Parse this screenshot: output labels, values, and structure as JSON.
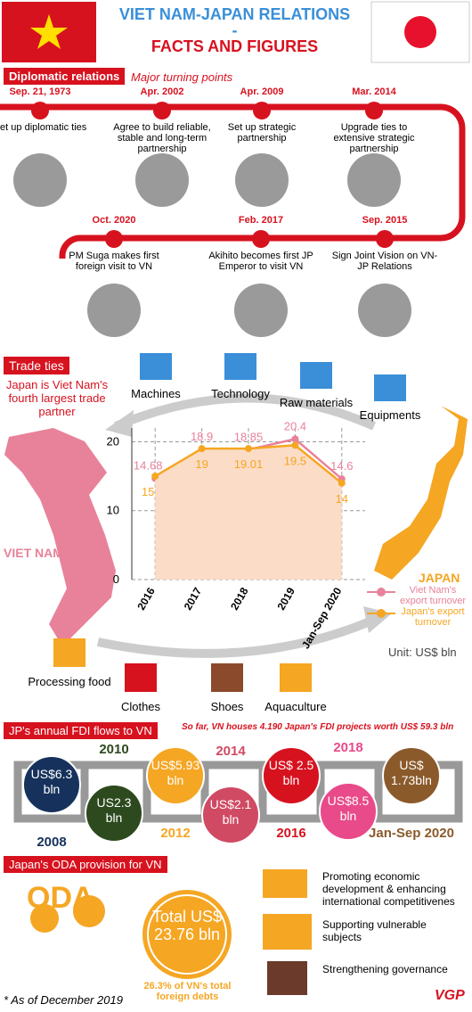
{
  "header": {
    "title_line1": "VIET NAM-JAPAN RELATIONS",
    "dash": "-",
    "title_line2": "FACTS AND FIGURES"
  },
  "diplomatic": {
    "label": "Diplomatic relations",
    "subtitle": "Major turning points",
    "events": [
      {
        "date": "Sep. 21, 1973",
        "text": "Set up diplomatic ties"
      },
      {
        "date": "Apr. 2002",
        "text": "Agree to build reliable, stable and long-term partnership"
      },
      {
        "date": "Apr. 2009",
        "text": "Set up strategic partnership"
      },
      {
        "date": "Mar. 2014",
        "text": "Upgrade ties to extensive strategic partnership"
      },
      {
        "date": "Sep. 2015",
        "text": "Sign Joint Vision on VN-JP Relations"
      },
      {
        "date": "Feb. 2017",
        "text": "Akihito becomes first JP Emperor to visit VN"
      },
      {
        "date": "Oct. 2020",
        "text": "PM Suga makes first foreign visit to VN"
      }
    ]
  },
  "trade": {
    "label": "Trade ties",
    "note": "Japan is Viet Nam's fourth largest trade partner",
    "imports": [
      "Machines",
      "Technology",
      "Raw materials",
      "Equipments"
    ],
    "exports": [
      "Processing food",
      "Clothes",
      "Shoes",
      "Aquaculture"
    ],
    "country_vn": "VIET NAM",
    "country_jp": "JAPAN",
    "unit": "Unit: US$ bln"
  },
  "chart_data": {
    "type": "line",
    "categories": [
      "2016",
      "2017",
      "2018",
      "2019",
      "Jan-Sep 2020"
    ],
    "series": [
      {
        "name": "Viet Nam's export turnover",
        "color": "#e8829a",
        "values": [
          14.68,
          18.9,
          18.85,
          20.4,
          14.6
        ]
      },
      {
        "name": "Japan's export turnover",
        "color": "#f5a623",
        "fill": "#fbdcc6",
        "values": [
          15,
          19,
          19.01,
          19.5,
          14
        ]
      }
    ],
    "ylim": [
      0,
      22
    ],
    "yticks": [
      0,
      10,
      20
    ],
    "grid": true
  },
  "fdi": {
    "label": "JP's annual FDI flows to VN",
    "note": "So far, VN houses 4.190 Japan's FDI projects worth US$ 59.3 bln",
    "items": [
      {
        "year": "2008",
        "value": "US$6.3 bln"
      },
      {
        "year": "2010",
        "value": "US2.3 bln"
      },
      {
        "year": "2012",
        "value": "US$5.93 bln"
      },
      {
        "year": "2014",
        "value": "US$2.1 bln"
      },
      {
        "year": "2016",
        "value": "US$ 2.5 bln"
      },
      {
        "year": "2018",
        "value": "US$8.5 bln"
      },
      {
        "year": "Jan-Sep 2020",
        "value": "US$ 1.73bln"
      }
    ]
  },
  "oda": {
    "label": "Japan's ODA provision for VN",
    "word": "ODA",
    "total": "Total US$ 23.76 bln",
    "share": "26.3% of VN's total foreign debts",
    "goals": [
      "Promoting economic development & enhancing international competitivenes",
      "Supporting vulnerable subjects",
      "Strengthening governance"
    ],
    "footnote": "* As of December 2019",
    "logo": "VGP"
  }
}
